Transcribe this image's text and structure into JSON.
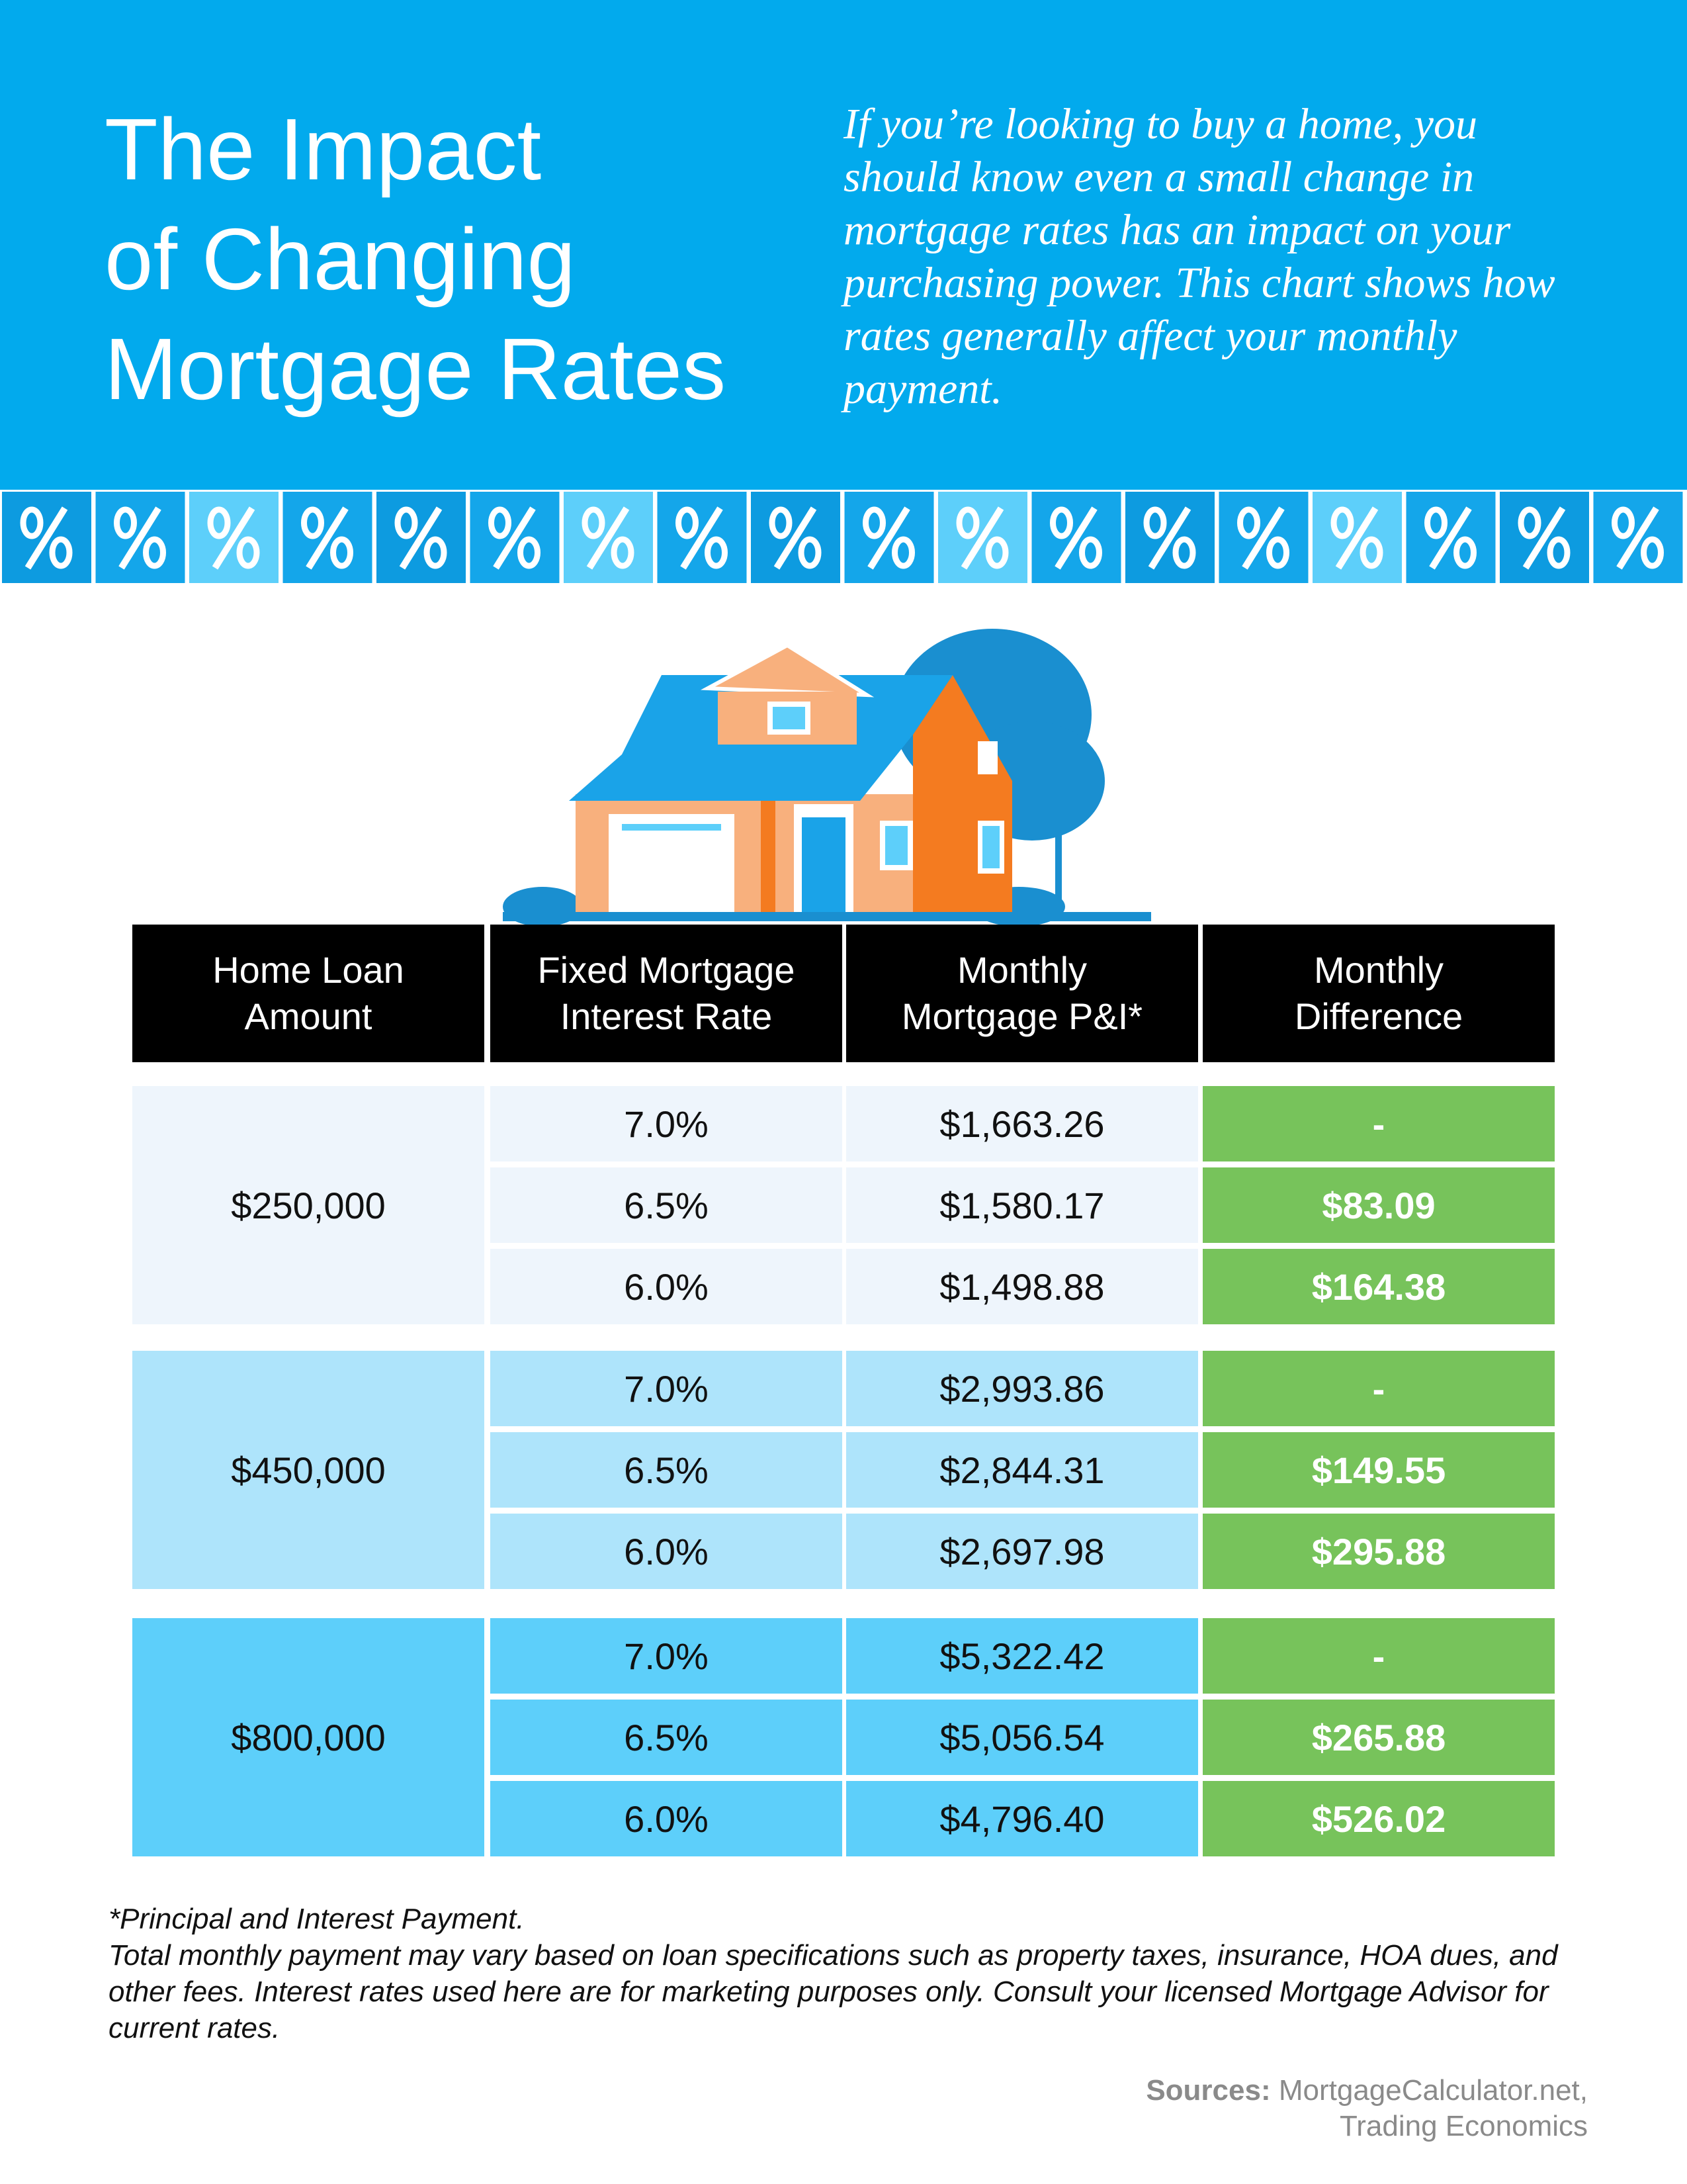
{
  "header": {
    "title_lines": [
      "The Impact",
      "of Changing",
      "Mortgage Rates"
    ],
    "intro": "If you’re looking to buy a home, you should know even a small change in mortgage rates has an impact on your purchasing power. This chart shows how rates generally affect your monthly payment."
  },
  "table": {
    "headers": [
      [
        "Home Loan",
        "Amount"
      ],
      [
        "Fixed Mortgage",
        "Interest Rate"
      ],
      [
        "Monthly",
        "Mortgage P&I*"
      ],
      [
        "Monthly",
        "Difference"
      ]
    ],
    "groups": [
      {
        "amount": "$250,000",
        "rows": [
          [
            "7.0%",
            "$1,663.26",
            "-"
          ],
          [
            "6.5%",
            "$1,580.17",
            "$83.09"
          ],
          [
            "6.0%",
            "$1,498.88",
            "$164.38"
          ]
        ]
      },
      {
        "amount": "$450,000",
        "rows": [
          [
            "7.0%",
            "$2,993.86",
            "-"
          ],
          [
            "6.5%",
            "$2,844.31",
            "$149.55"
          ],
          [
            "6.0%",
            "$2,697.98",
            "$295.88"
          ]
        ]
      },
      {
        "amount": "$800,000",
        "rows": [
          [
            "7.0%",
            "$5,322.42",
            "-"
          ],
          [
            "6.5%",
            "$5,056.54",
            "$265.88"
          ],
          [
            "6.0%",
            "$4,796.40",
            "$526.02"
          ]
        ]
      }
    ]
  },
  "footnotes": [
    "*Principal and Interest Payment.",
    "Total monthly payment may vary based on loan specifications such as property taxes, insurance, HOA dues, and other fees. Interest rates used here are for marketing purposes only. Consult your licensed Mortgage Advisor for current rates."
  ],
  "sources": {
    "label": "Sources:",
    "lines": [
      "MortgageCalculator.net,",
      "Trading Economics"
    ]
  }
}
